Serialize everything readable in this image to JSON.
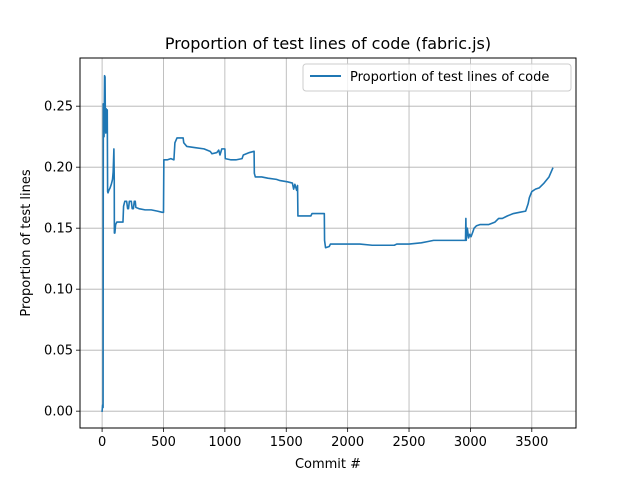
{
  "chart_data": {
    "type": "line",
    "title": "Proportion of test lines of code (fabric.js)",
    "xlabel": "Commit #",
    "ylabel": "Proportion of test lines",
    "xlim": [
      -180,
      3860
    ],
    "ylim": [
      -0.0138,
      0.2895
    ],
    "x_ticks": [
      0,
      500,
      1000,
      1500,
      2000,
      2500,
      3000,
      3500
    ],
    "x_tick_labels": [
      "0",
      "500",
      "1000",
      "1500",
      "2000",
      "2500",
      "3000",
      "3500"
    ],
    "y_ticks": [
      0.0,
      0.05,
      0.1,
      0.15,
      0.2,
      0.25
    ],
    "y_tick_labels": [
      "0.00",
      "0.05",
      "0.10",
      "0.15",
      "0.20",
      "0.25"
    ],
    "grid": true,
    "legend": {
      "position": "top-right",
      "entries": [
        "Proportion of test lines of code"
      ]
    },
    "series": [
      {
        "name": "Proportion of test lines of code",
        "color": "#1f77b4",
        "points": [
          [
            0,
            0.0
          ],
          [
            4,
            0.005
          ],
          [
            8,
            0.003
          ],
          [
            10,
            0.252
          ],
          [
            13,
            0.24
          ],
          [
            16,
            0.225
          ],
          [
            20,
            0.275
          ],
          [
            24,
            0.274
          ],
          [
            27,
            0.235
          ],
          [
            30,
            0.228
          ],
          [
            33,
            0.248
          ],
          [
            36,
            0.23
          ],
          [
            38,
            0.245
          ],
          [
            42,
            0.247
          ],
          [
            45,
            0.18
          ],
          [
            48,
            0.179
          ],
          [
            55,
            0.181
          ],
          [
            65,
            0.183
          ],
          [
            75,
            0.186
          ],
          [
            85,
            0.19
          ],
          [
            90,
            0.196
          ],
          [
            93,
            0.205
          ],
          [
            96,
            0.215
          ],
          [
            99,
            0.19
          ],
          [
            100,
            0.146
          ],
          [
            104,
            0.146
          ],
          [
            110,
            0.153
          ],
          [
            120,
            0.155
          ],
          [
            150,
            0.155
          ],
          [
            170,
            0.155
          ],
          [
            175,
            0.168
          ],
          [
            185,
            0.172
          ],
          [
            200,
            0.172
          ],
          [
            208,
            0.166
          ],
          [
            215,
            0.166
          ],
          [
            222,
            0.172
          ],
          [
            238,
            0.172
          ],
          [
            245,
            0.166
          ],
          [
            255,
            0.166
          ],
          [
            262,
            0.172
          ],
          [
            270,
            0.172
          ],
          [
            275,
            0.167
          ],
          [
            300,
            0.166
          ],
          [
            350,
            0.165
          ],
          [
            400,
            0.165
          ],
          [
            450,
            0.164
          ],
          [
            490,
            0.163
          ],
          [
            500,
            0.163
          ],
          [
            503,
            0.206
          ],
          [
            530,
            0.206
          ],
          [
            560,
            0.207
          ],
          [
            585,
            0.206
          ],
          [
            593,
            0.22
          ],
          [
            610,
            0.224
          ],
          [
            630,
            0.224
          ],
          [
            660,
            0.224
          ],
          [
            665,
            0.22
          ],
          [
            690,
            0.217
          ],
          [
            760,
            0.216
          ],
          [
            830,
            0.215
          ],
          [
            880,
            0.213
          ],
          [
            895,
            0.211
          ],
          [
            935,
            0.212
          ],
          [
            950,
            0.214
          ],
          [
            960,
            0.21
          ],
          [
            975,
            0.215
          ],
          [
            1000,
            0.215
          ],
          [
            1003,
            0.207
          ],
          [
            1050,
            0.206
          ],
          [
            1090,
            0.206
          ],
          [
            1140,
            0.207
          ],
          [
            1150,
            0.21
          ],
          [
            1200,
            0.212
          ],
          [
            1238,
            0.213
          ],
          [
            1240,
            0.195
          ],
          [
            1248,
            0.192
          ],
          [
            1300,
            0.192
          ],
          [
            1350,
            0.191
          ],
          [
            1420,
            0.19
          ],
          [
            1450,
            0.189
          ],
          [
            1510,
            0.188
          ],
          [
            1550,
            0.187
          ],
          [
            1560,
            0.182
          ],
          [
            1570,
            0.186
          ],
          [
            1585,
            0.181
          ],
          [
            1592,
            0.185
          ],
          [
            1595,
            0.16
          ],
          [
            1650,
            0.16
          ],
          [
            1700,
            0.16
          ],
          [
            1710,
            0.162
          ],
          [
            1790,
            0.162
          ],
          [
            1810,
            0.162
          ],
          [
            1812,
            0.14
          ],
          [
            1820,
            0.134
          ],
          [
            1850,
            0.135
          ],
          [
            1860,
            0.137
          ],
          [
            1900,
            0.137
          ],
          [
            2000,
            0.137
          ],
          [
            2100,
            0.137
          ],
          [
            2200,
            0.136
          ],
          [
            2300,
            0.136
          ],
          [
            2380,
            0.136
          ],
          [
            2400,
            0.137
          ],
          [
            2500,
            0.137
          ],
          [
            2600,
            0.138
          ],
          [
            2650,
            0.139
          ],
          [
            2700,
            0.14
          ],
          [
            2800,
            0.14
          ],
          [
            2900,
            0.14
          ],
          [
            2960,
            0.14
          ],
          [
            2963,
            0.158
          ],
          [
            2966,
            0.14
          ],
          [
            2975,
            0.15
          ],
          [
            2985,
            0.142
          ],
          [
            2995,
            0.145
          ],
          [
            3005,
            0.143
          ],
          [
            3020,
            0.147
          ],
          [
            3030,
            0.15
          ],
          [
            3050,
            0.152
          ],
          [
            3080,
            0.153
          ],
          [
            3150,
            0.153
          ],
          [
            3200,
            0.155
          ],
          [
            3230,
            0.158
          ],
          [
            3260,
            0.158
          ],
          [
            3300,
            0.16
          ],
          [
            3350,
            0.162
          ],
          [
            3400,
            0.163
          ],
          [
            3450,
            0.164
          ],
          [
            3470,
            0.17
          ],
          [
            3480,
            0.175
          ],
          [
            3500,
            0.18
          ],
          [
            3530,
            0.182
          ],
          [
            3560,
            0.183
          ],
          [
            3600,
            0.187
          ],
          [
            3640,
            0.192
          ],
          [
            3670,
            0.199
          ]
        ]
      }
    ]
  }
}
